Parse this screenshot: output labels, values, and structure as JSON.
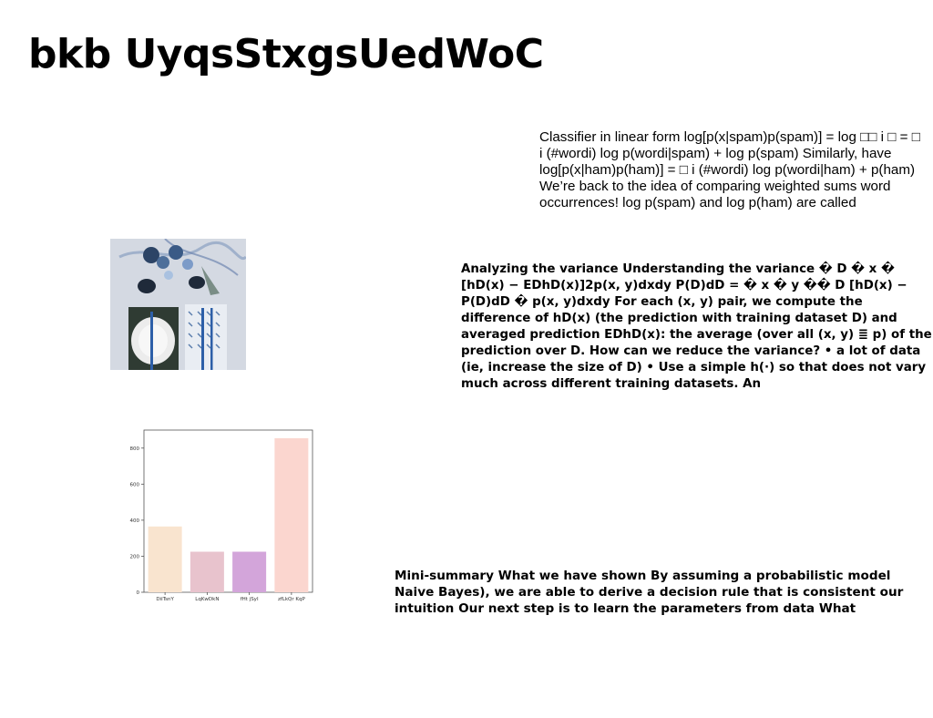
{
  "title": "bkb UyqsStxgsUedWoC",
  "paragraphs": {
    "p1": "Classifier in linear form log[p(x|spam)p(spam)] = log □□ i □ = □ i (#wordi) log p(wordi|spam) + log p(spam) Similarly, have log[p(x|ham)p(ham)] = □ i (#wordi) log p(wordi|ham) + p(ham) We’re back to the idea of comparing weighted sums word occurrences! log p(spam) and log p(ham) are called",
    "p2": "Analyzing the variance Understanding the variance � D � x � [hD(x) − EDhD(x)]2p(x, y)dxdy P(D)dD = � x � y �� D [hD(x) − P(D)dD � p(x, y)dxdy For each (x, y) pair, we compute the difference of hD(x) (the prediction with training dataset D) and averaged prediction EDhD(x): the average (over all (x, y) ≣ p) of the prediction over D. How can we reduce the variance? • a lot of data (ie, increase the size of D) • Use a simple h(·) so that does not vary much across different training datasets. An",
    "p3": "Mini-summary What we have shown By assuming a probabilistic model Naive Bayes), we are able to derive a decision rule that is consistent our intuition Our next step is to learn the parameters from data What"
  },
  "chart_data": {
    "type": "bar",
    "categories": [
      "DiiTsnY",
      "LqKwDkN",
      "fHt jSyI",
      "zfLkQr KqP"
    ],
    "values": [
      365,
      225,
      225,
      855
    ],
    "colors": [
      "#f9e4cf",
      "#e8c3cd",
      "#d3a5da",
      "#fbd6cf"
    ],
    "ylim": [
      0,
      900
    ],
    "yticks": [
      0,
      200,
      400,
      600,
      800
    ]
  }
}
